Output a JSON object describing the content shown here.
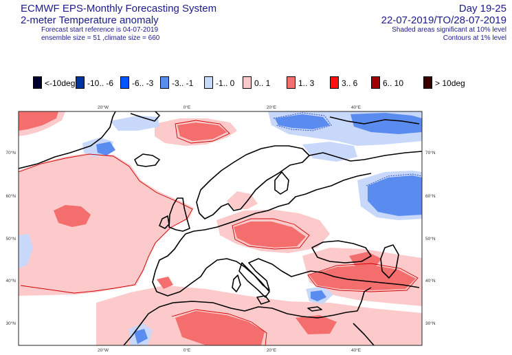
{
  "header": {
    "title": "ECMWF EPS-Monthly Forecasting System",
    "subtitle": "2-meter Temperature anomaly",
    "start_reference": "Forecast start reference is 04-07-2019",
    "ensemble_info": "ensemble size = 51  ,climate size = 660",
    "day_range": "Day 19-25",
    "date_range": "22-07-2019/TO/28-07-2019",
    "note_shaded": "Shaded areas significant at 10% level",
    "note_contours": "Contours at 1% level"
  },
  "legend": [
    {
      "label": "<-10deg",
      "color": "#000033"
    },
    {
      "label": "-10.. -6",
      "color": "#0033a0"
    },
    {
      "label": "-6.. -3",
      "color": "#0055ff"
    },
    {
      "label": "-3.. -1",
      "color": "#5a8cf0"
    },
    {
      "label": "-1.. 0",
      "color": "#c8d8fa"
    },
    {
      "label": "0.. 1",
      "color": "#fccaca"
    },
    {
      "label": "1.. 3",
      "color": "#f46e6e"
    },
    {
      "label": "3.. 6",
      "color": "#ff1010"
    },
    {
      "label": "6.. 10",
      "color": "#a00000"
    },
    {
      "label": "> 10deg",
      "color": "#3a0000"
    }
  ],
  "map": {
    "lon_labels_top": [
      "20°W",
      "0°E",
      "20°E",
      "40°E"
    ],
    "lon_labels_bottom": [
      "20°W",
      "0°E",
      "20°E",
      "40°E"
    ],
    "lat_labels_left": [
      "70°N",
      "60°N",
      "50°N",
      "40°N",
      "30°N"
    ],
    "lat_labels_right": [
      "70°N",
      "60°N",
      "50°N",
      "40°N",
      "30°N"
    ]
  }
}
